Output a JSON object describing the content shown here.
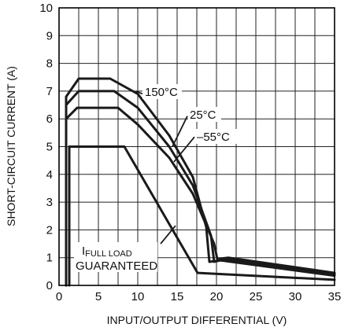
{
  "chart_data": {
    "type": "line",
    "xlabel": "INPUT/OUTPUT DIFFERENTIAL (V)",
    "ylabel": "SHORT-CIRCUIT CURRENT (A)",
    "xlim": [
      0,
      35
    ],
    "ylim": [
      0,
      10
    ],
    "x_ticks": [
      "0",
      "5",
      "10",
      "15",
      "20",
      "25",
      "30",
      "35"
    ],
    "y_ticks": [
      "0",
      "1",
      "2",
      "3",
      "4",
      "5",
      "6",
      "7",
      "8",
      "9",
      "10"
    ],
    "grid": true,
    "series": [
      {
        "name": "150°C",
        "x": [
          0.9,
          0.9,
          2.5,
          6.5,
          10,
          14,
          17,
          18.7,
          19.1,
          20.5,
          35
        ],
        "y": [
          0,
          6.8,
          7.45,
          7.45,
          6.9,
          5.4,
          3.9,
          2.1,
          0.85,
          0.9,
          0.35
        ]
      },
      {
        "name": "25°C",
        "x": [
          0.9,
          0.9,
          2.5,
          7,
          10,
          14,
          17,
          19.3,
          19.7,
          21,
          35
        ],
        "y": [
          0,
          6.5,
          7.0,
          7.0,
          6.4,
          5.0,
          3.6,
          1.8,
          0.85,
          0.95,
          0.4
        ]
      },
      {
        "name": "–55°C",
        "x": [
          0.9,
          0.9,
          2.3,
          7.5,
          10,
          14,
          17,
          19.7,
          20.1,
          21.5,
          35
        ],
        "y": [
          0,
          6.0,
          6.4,
          6.4,
          5.8,
          4.6,
          3.3,
          1.5,
          0.95,
          1.0,
          0.45
        ]
      },
      {
        "name": "IFULL LOAD GUARANTEED",
        "x": [
          1.3,
          1.3,
          8.3,
          17.6,
          35
        ],
        "y": [
          0,
          5.0,
          5.0,
          0.45,
          0.2
        ]
      }
    ],
    "annotations": {
      "t150": "150°C",
      "t25": "25°C",
      "tm55": "–55°C",
      "full_load_main": "I",
      "full_load_sub": "FULL LOAD",
      "guaranteed": "GUARANTEED"
    }
  }
}
